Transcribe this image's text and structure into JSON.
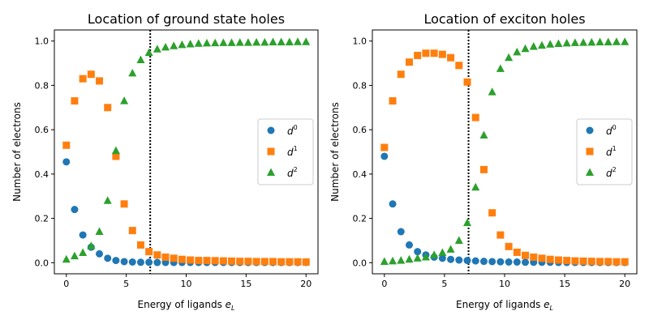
{
  "chart_data": [
    {
      "type": "scatter",
      "title": "Location of ground state holes",
      "xlabel": "Energy of ligands e_L",
      "xlabel_main": "Energy of ligands ",
      "xlabel_sym": "e",
      "xlabel_sub": "L",
      "ylabel": "Number of electrons",
      "xlim": [
        -1,
        21
      ],
      "ylim": [
        -0.05,
        1.05
      ],
      "xticks": [
        0,
        5,
        10,
        15,
        20
      ],
      "yticks": [
        "0.0",
        "0.2",
        "0.4",
        "0.6",
        "0.8",
        "1.0"
      ],
      "vline": 7,
      "legend_position": "center-right",
      "series": [
        {
          "name": "d0",
          "sym": "d",
          "sup": "0",
          "color": "#1f77b4",
          "marker": "circle",
          "values": [
            0.455,
            0.24,
            0.125,
            0.07,
            0.04,
            0.02,
            0.01,
            0.005,
            0.003,
            0.002,
            0.002,
            0.001,
            0.001,
            0.001,
            0.001,
            0.001,
            0.001,
            0.001,
            0.001,
            0.001,
            0.001,
            0.001,
            0.001,
            0.001,
            0.001,
            0.001,
            0.001,
            0.001,
            0.001,
            0.001
          ]
        },
        {
          "name": "d1",
          "sym": "d",
          "sup": "1",
          "color": "#ff7f0e",
          "marker": "square",
          "values": [
            0.53,
            0.73,
            0.83,
            0.85,
            0.82,
            0.7,
            0.48,
            0.265,
            0.145,
            0.08,
            0.05,
            0.035,
            0.025,
            0.02,
            0.015,
            0.012,
            0.01,
            0.01,
            0.009,
            0.008,
            0.007,
            0.006,
            0.006,
            0.005,
            0.005,
            0.005,
            0.004,
            0.004,
            0.004,
            0.003
          ]
        },
        {
          "name": "d2",
          "sym": "d",
          "sup": "2",
          "color": "#2ca02c",
          "marker": "triangle",
          "values": [
            0.015,
            0.03,
            0.045,
            0.075,
            0.14,
            0.28,
            0.505,
            0.73,
            0.855,
            0.915,
            0.947,
            0.963,
            0.972,
            0.978,
            0.983,
            0.986,
            0.989,
            0.99,
            0.991,
            0.992,
            0.992,
            0.993,
            0.993,
            0.994,
            0.994,
            0.995,
            0.995,
            0.995,
            0.996,
            0.996
          ]
        }
      ]
    },
    {
      "type": "scatter",
      "title": "Location of exciton holes",
      "xlabel": "Energy of ligands e_L",
      "xlabel_main": "Energy of ligands ",
      "xlabel_sym": "e",
      "xlabel_sub": "L",
      "ylabel": "Number of electrons",
      "xlim": [
        -1,
        21
      ],
      "ylim": [
        -0.05,
        1.05
      ],
      "xticks": [
        0,
        5,
        10,
        15,
        20
      ],
      "yticks": [
        "0.0",
        "0.2",
        "0.4",
        "0.6",
        "0.8",
        "1.0"
      ],
      "vline": 7,
      "legend_position": "center-right",
      "series": [
        {
          "name": "d0",
          "sym": "d",
          "sup": "0",
          "color": "#1f77b4",
          "marker": "circle",
          "values": [
            0.48,
            0.265,
            0.14,
            0.08,
            0.05,
            0.035,
            0.025,
            0.02,
            0.015,
            0.012,
            0.01,
            0.008,
            0.006,
            0.005,
            0.004,
            0.003,
            0.003,
            0.002,
            0.002,
            0.002,
            0.002,
            0.001,
            0.001,
            0.001,
            0.001,
            0.001,
            0.001,
            0.001,
            0.001,
            0.001
          ]
        },
        {
          "name": "d1",
          "sym": "d",
          "sup": "1",
          "color": "#ff7f0e",
          "marker": "square",
          "values": [
            0.52,
            0.73,
            0.85,
            0.905,
            0.935,
            0.945,
            0.945,
            0.94,
            0.925,
            0.89,
            0.815,
            0.655,
            0.42,
            0.225,
            0.125,
            0.073,
            0.047,
            0.033,
            0.025,
            0.02,
            0.015,
            0.012,
            0.01,
            0.008,
            0.007,
            0.006,
            0.005,
            0.005,
            0.004,
            0.004
          ]
        },
        {
          "name": "d2",
          "sym": "d",
          "sup": "2",
          "color": "#2ca02c",
          "marker": "triangle",
          "values": [
            0.005,
            0.007,
            0.01,
            0.015,
            0.02,
            0.025,
            0.035,
            0.045,
            0.06,
            0.1,
            0.18,
            0.34,
            0.575,
            0.77,
            0.875,
            0.925,
            0.95,
            0.965,
            0.975,
            0.98,
            0.985,
            0.988,
            0.99,
            0.992,
            0.993,
            0.994,
            0.995,
            0.995,
            0.996,
            0.996
          ]
        }
      ]
    }
  ]
}
